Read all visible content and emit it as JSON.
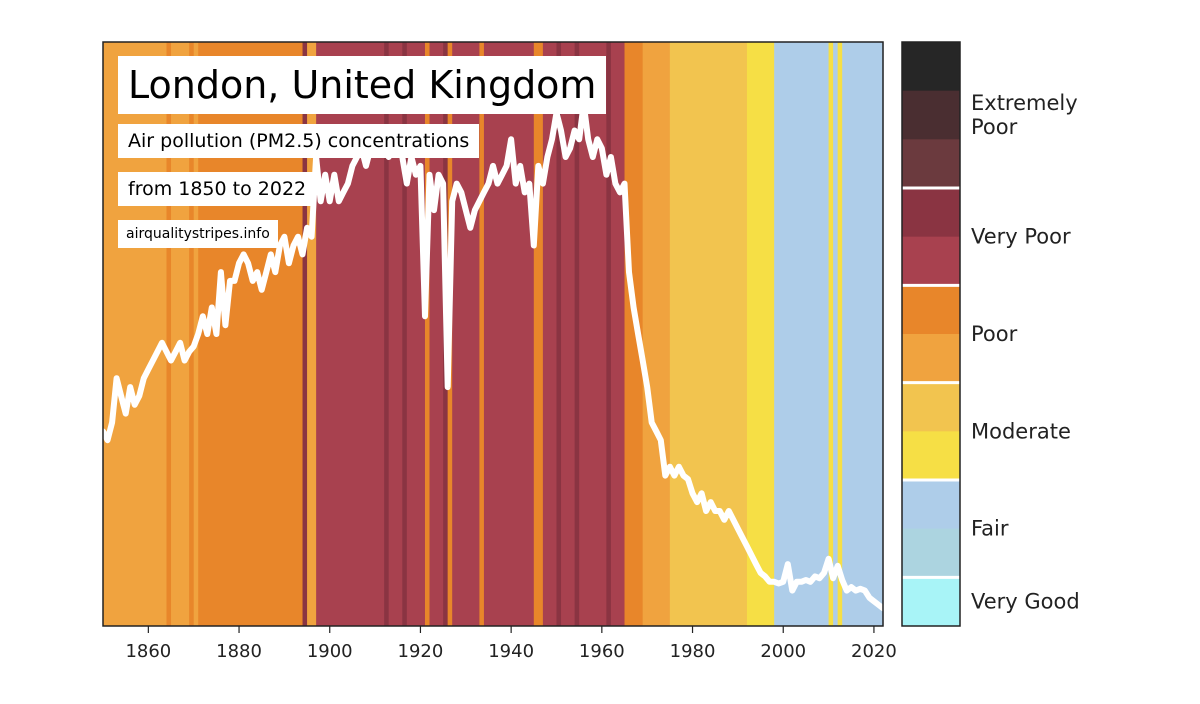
{
  "chart_data": {
    "type": "line",
    "title": "London, United Kingdom",
    "subtitle": "Air pollution (PM2.5) concentrations",
    "range_text": "from 1850 to 2022",
    "source": "airqualitystripes.info",
    "xlabel": "",
    "ylabel": "",
    "xlim": [
      1850,
      2022
    ],
    "x_ticks": [
      1860,
      1880,
      1900,
      1920,
      1940,
      1960,
      1980,
      2000,
      2020
    ],
    "grid": false,
    "legend": "right",
    "stripe_colors": {
      "poor_light": "#f0a33f",
      "poor_dark": "#e8862a",
      "vpoor_light": "#a8414f",
      "vpoor_dark": "#8a3442",
      "moderate_dark": "#f2c44f",
      "moderate_light": "#f6df45",
      "fair": "#aecde9"
    },
    "stripes": [
      {
        "from": 1850,
        "to": 1864,
        "category": "poor_light"
      },
      {
        "from": 1864,
        "to": 1865,
        "category": "poor_dark"
      },
      {
        "from": 1865,
        "to": 1869,
        "category": "poor_light"
      },
      {
        "from": 1869,
        "to": 1870,
        "category": "poor_dark"
      },
      {
        "from": 1870,
        "to": 1871,
        "category": "poor_light"
      },
      {
        "from": 1871,
        "to": 1894,
        "category": "poor_dark"
      },
      {
        "from": 1894,
        "to": 1895,
        "category": "vpoor_dark"
      },
      {
        "from": 1895,
        "to": 1897,
        "category": "poor_light"
      },
      {
        "from": 1897,
        "to": 1912,
        "category": "vpoor_light"
      },
      {
        "from": 1912,
        "to": 1913,
        "category": "vpoor_dark"
      },
      {
        "from": 1913,
        "to": 1916,
        "category": "vpoor_light"
      },
      {
        "from": 1916,
        "to": 1917,
        "category": "vpoor_dark"
      },
      {
        "from": 1917,
        "to": 1921,
        "category": "vpoor_light"
      },
      {
        "from": 1921,
        "to": 1922,
        "category": "poor_dark"
      },
      {
        "from": 1922,
        "to": 1925,
        "category": "vpoor_light"
      },
      {
        "from": 1925,
        "to": 1926,
        "category": "vpoor_dark"
      },
      {
        "from": 1926,
        "to": 1927,
        "category": "poor_dark"
      },
      {
        "from": 1927,
        "to": 1933,
        "category": "vpoor_light"
      },
      {
        "from": 1933,
        "to": 1934,
        "category": "poor_dark"
      },
      {
        "from": 1934,
        "to": 1945,
        "category": "vpoor_light"
      },
      {
        "from": 1945,
        "to": 1947,
        "category": "poor_dark"
      },
      {
        "from": 1947,
        "to": 1950,
        "category": "vpoor_light"
      },
      {
        "from": 1950,
        "to": 1951,
        "category": "vpoor_dark"
      },
      {
        "from": 1951,
        "to": 1954,
        "category": "vpoor_light"
      },
      {
        "from": 1954,
        "to": 1955,
        "category": "vpoor_dark"
      },
      {
        "from": 1955,
        "to": 1961,
        "category": "vpoor_light"
      },
      {
        "from": 1961,
        "to": 1962,
        "category": "vpoor_dark"
      },
      {
        "from": 1962,
        "to": 1965,
        "category": "vpoor_light"
      },
      {
        "from": 1965,
        "to": 1969,
        "category": "poor_dark"
      },
      {
        "from": 1969,
        "to": 1975,
        "category": "poor_light"
      },
      {
        "from": 1975,
        "to": 1992,
        "category": "moderate_dark"
      },
      {
        "from": 1992,
        "to": 1998,
        "category": "moderate_light"
      },
      {
        "from": 1998,
        "to": 2010,
        "category": "fair"
      },
      {
        "from": 2010,
        "to": 2011,
        "category": "moderate_light"
      },
      {
        "from": 2011,
        "to": 2012,
        "category": "fair"
      },
      {
        "from": 2012,
        "to": 2013,
        "category": "moderate_light"
      },
      {
        "from": 2013,
        "to": 2022,
        "category": "fair"
      }
    ],
    "series": [
      {
        "color": "#ffffff",
        "x": [
          1850,
          1851,
          1852,
          1853,
          1854,
          1855,
          1856,
          1857,
          1858,
          1859,
          1860,
          1861,
          1862,
          1863,
          1864,
          1865,
          1866,
          1867,
          1868,
          1869,
          1870,
          1871,
          1872,
          1873,
          1874,
          1875,
          1876,
          1877,
          1878,
          1879,
          1880,
          1881,
          1882,
          1883,
          1884,
          1885,
          1886,
          1887,
          1888,
          1889,
          1890,
          1891,
          1892,
          1893,
          1894,
          1895,
          1896,
          1897,
          1898,
          1899,
          1900,
          1901,
          1902,
          1903,
          1904,
          1905,
          1906,
          1907,
          1908,
          1909,
          1910,
          1911,
          1912,
          1913,
          1914,
          1915,
          1916,
          1917,
          1918,
          1919,
          1920,
          1921,
          1922,
          1923,
          1924,
          1925,
          1926,
          1927,
          1928,
          1929,
          1930,
          1931,
          1932,
          1933,
          1934,
          1935,
          1936,
          1937,
          1938,
          1939,
          1940,
          1941,
          1942,
          1943,
          1944,
          1945,
          1946,
          1947,
          1948,
          1949,
          1950,
          1951,
          1952,
          1953,
          1954,
          1955,
          1956,
          1957,
          1958,
          1959,
          1960,
          1961,
          1962,
          1963,
          1964,
          1965,
          1966,
          1967,
          1968,
          1969,
          1970,
          1971,
          1972,
          1973,
          1974,
          1975,
          1976,
          1977,
          1978,
          1979,
          1980,
          1981,
          1982,
          1983,
          1984,
          1985,
          1986,
          1987,
          1988,
          1989,
          1990,
          1991,
          1992,
          1993,
          1994,
          1995,
          1996,
          1997,
          1998,
          1999,
          2000,
          2001,
          2002,
          2003,
          2004,
          2005,
          2006,
          2007,
          2008,
          2009,
          2010,
          2011,
          2012,
          2013,
          2014,
          2015,
          2016,
          2017,
          2018,
          2019,
          2020,
          2021,
          2022
        ],
        "y": [
          31.0,
          30.5,
          31.5,
          34.0,
          33.0,
          32.0,
          33.5,
          32.5,
          33.0,
          34.0,
          34.5,
          35.0,
          35.5,
          36.0,
          35.5,
          35.0,
          35.5,
          36.0,
          35.0,
          35.5,
          35.8,
          36.5,
          37.5,
          36.5,
          38.0,
          36.5,
          40.0,
          37.0,
          39.5,
          39.5,
          40.5,
          41.0,
          40.5,
          39.5,
          40.0,
          39.0,
          40.0,
          41.0,
          40.0,
          41.5,
          42.0,
          40.5,
          41.5,
          42.0,
          41.0,
          42.5,
          42.0,
          46.5,
          44.0,
          45.5,
          44.0,
          45.5,
          44.0,
          44.5,
          45.0,
          46.0,
          46.5,
          47.0,
          46.0,
          47.0,
          47.5,
          48.0,
          47.0,
          46.5,
          47.0,
          47.5,
          46.5,
          45.0,
          46.5,
          45.5,
          46.0,
          37.5,
          45.5,
          43.5,
          45.5,
          45.0,
          33.5,
          44.0,
          45.0,
          44.5,
          43.5,
          42.5,
          43.5,
          44.0,
          44.5,
          45.0,
          46.0,
          45.0,
          45.5,
          46.0,
          47.5,
          45.0,
          46.0,
          44.5,
          45.0,
          41.5,
          46.0,
          45.0,
          46.5,
          47.5,
          49.0,
          48.0,
          46.5,
          47.0,
          48.0,
          47.5,
          49.5,
          47.5,
          46.5,
          47.5,
          47.0,
          45.5,
          46.5,
          45.0,
          44.5,
          45.0,
          40.0,
          38.0,
          36.5,
          35.0,
          33.5,
          31.5,
          31.0,
          30.5,
          28.5,
          29.0,
          28.5,
          29.0,
          28.5,
          28.3,
          27.5,
          27.0,
          27.5,
          26.5,
          27.0,
          26.5,
          26.5,
          26.0,
          26.5,
          26.0,
          25.5,
          25.0,
          24.5,
          24.0,
          23.5,
          23.0,
          22.8,
          22.5,
          22.5,
          22.4,
          22.5,
          23.5,
          22.0,
          22.5,
          22.5,
          22.6,
          22.5,
          22.8,
          22.7,
          23.0,
          23.8,
          22.7,
          23.4,
          22.6,
          22.0,
          22.2,
          22.0,
          22.1,
          22.0,
          21.6,
          21.4,
          21.2,
          21.0
        ]
      }
    ],
    "colorbar": {
      "position": "right",
      "labels": [
        "Extremely Poor",
        "Very Poor",
        "Poor",
        "Moderate",
        "Fair",
        "Very Good"
      ],
      "groups": [
        {
          "label": "Extremely Poor",
          "colors": [
            "#262626",
            "#4a2e31",
            "#6b3a3e"
          ]
        },
        {
          "label": "Very Poor",
          "colors": [
            "#8a3442",
            "#a8414f"
          ]
        },
        {
          "label": "Poor",
          "colors": [
            "#e8862a",
            "#f0a33f"
          ]
        },
        {
          "label": "Moderate",
          "colors": [
            "#f2c44f",
            "#f6df45"
          ]
        },
        {
          "label": "Fair",
          "colors": [
            "#aecde9",
            "#acd4e0"
          ]
        },
        {
          "label": "Very Good",
          "colors": [
            "#a8f4f7"
          ]
        }
      ]
    }
  }
}
